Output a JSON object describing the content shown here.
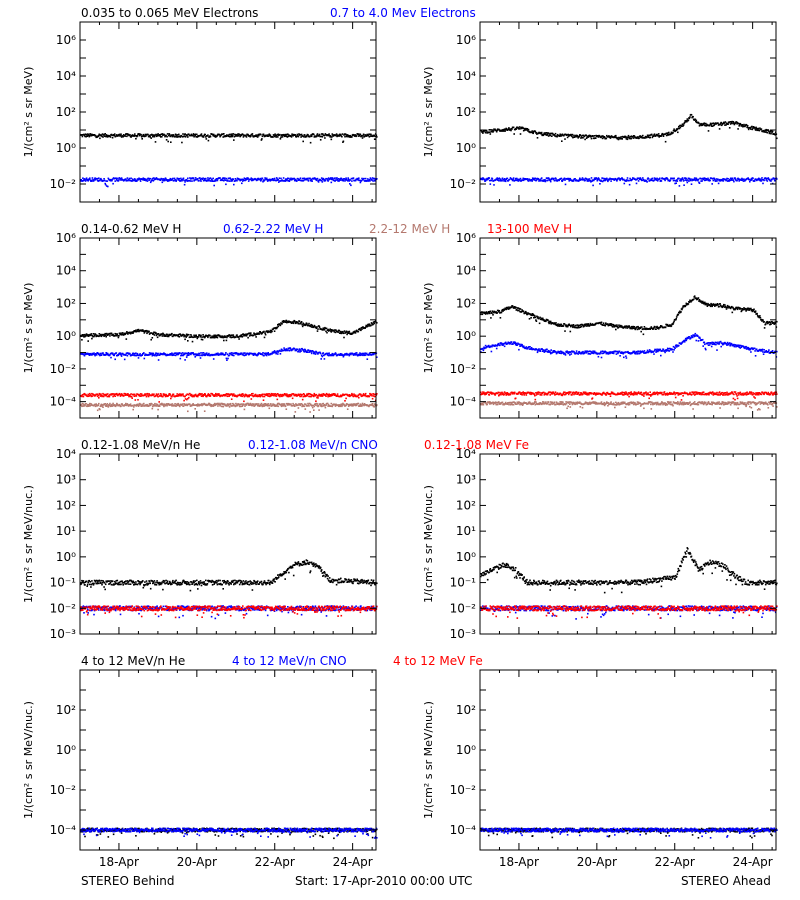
{
  "colors": {
    "black": "#000000",
    "blue": "#0000ff",
    "red": "#ff0000",
    "tan": "#b4786e"
  },
  "footer": {
    "left": "STEREO Behind",
    "center": "Start: 17-Apr-2010 00:00 UTC",
    "right": "STEREO Ahead"
  },
  "x_tick_labels": [
    "18-Apr",
    "20-Apr",
    "22-Apr",
    "24-Apr"
  ],
  "rows": [
    {
      "legend": [
        {
          "text": "0.035 to 0.065 MeV Electrons",
          "color": "#000000"
        },
        {
          "text": "0.7 to 4.0 Mev Electrons",
          "color": "#0000ff"
        }
      ]
    },
    {
      "legend": [
        {
          "text": "0.14-0.62 MeV H",
          "color": "#000000"
        },
        {
          "text": "0.62-2.22 MeV H",
          "color": "#0000ff"
        },
        {
          "text": "2.2-12 MeV H",
          "color": "#b4786e"
        },
        {
          "text": "13-100 MeV H",
          "color": "#ff0000"
        }
      ]
    },
    {
      "legend": [
        {
          "text": "0.12-1.08 MeV/n He",
          "color": "#000000"
        },
        {
          "text": "0.12-1.08 MeV/n CNO",
          "color": "#0000ff"
        },
        {
          "text": "0.12-1.08 MeV Fe",
          "color": "#ff0000"
        }
      ]
    },
    {
      "legend": [
        {
          "text": "4 to 12 MeV/n He",
          "color": "#000000"
        },
        {
          "text": "4 to 12 MeV/n CNO",
          "color": "#0000ff"
        },
        {
          "text": "4 to 12 MeV Fe",
          "color": "#ff0000"
        }
      ]
    }
  ],
  "chart_data": [
    {
      "type": "scatter",
      "panel": "electrons-behind",
      "log_y": true,
      "ylabel": "1/(cm² s sr MeV)",
      "ylim_log10": [
        -3,
        7
      ],
      "xlim_days": [
        0,
        7.6
      ],
      "y_tick_labels": [
        "10⁻²",
        "10⁰",
        "10²",
        "10⁴",
        "10⁶"
      ],
      "series": [
        {
          "name": "0.035 to 0.065 MeV Electrons",
          "color": "#000000",
          "x": [
            0,
            7.6
          ],
          "y_log10": [
            0.7,
            0.7
          ]
        },
        {
          "name": "0.7 to 4.0 Mev Electrons",
          "color": "#0000ff",
          "x": [
            0,
            7.6
          ],
          "y_log10": [
            -1.75,
            -1.75
          ]
        }
      ]
    },
    {
      "type": "scatter",
      "panel": "electrons-ahead",
      "log_y": true,
      "ylabel": "1/(cm² s sr MeV)",
      "ylim_log10": [
        -3,
        7
      ],
      "xlim_days": [
        0,
        7.6
      ],
      "y_tick_labels": [
        "10⁻²",
        "10⁰",
        "10²",
        "10⁴",
        "10⁶"
      ],
      "series": [
        {
          "name": "0.035 to 0.065 MeV Electrons",
          "color": "#000000",
          "x": [
            0,
            0.5,
            1,
            1.5,
            2,
            3,
            4,
            4.8,
            5.2,
            5.4,
            5.6,
            6,
            6.5,
            7,
            7.6
          ],
          "y_log10": [
            0.9,
            1,
            1.1,
            0.8,
            0.7,
            0.6,
            0.6,
            0.75,
            1.3,
            1.8,
            1.3,
            1.3,
            1.4,
            1.1,
            0.8
          ]
        },
        {
          "name": "0.7 to 4.0 Mev Electrons",
          "color": "#0000ff",
          "x": [
            0,
            7.6
          ],
          "y_log10": [
            -1.75,
            -1.75
          ]
        }
      ]
    },
    {
      "type": "scatter",
      "panel": "protons-behind",
      "log_y": true,
      "ylabel": "1/(cm² s sr MeV)",
      "ylim_log10": [
        -5,
        6
      ],
      "xlim_days": [
        0,
        7.6
      ],
      "y_tick_labels": [
        "10⁻⁴",
        "10⁻²",
        "10⁰",
        "10²",
        "10⁴",
        "10⁶"
      ],
      "series": [
        {
          "name": "0.14-0.62 MeV H",
          "color": "#000000",
          "x": [
            0,
            1,
            1.5,
            2,
            3,
            4,
            4.5,
            4.9,
            5.2,
            5.6,
            6,
            6.5,
            7,
            7.6
          ],
          "y_log10": [
            0.05,
            0.1,
            0.35,
            0.1,
            0,
            0,
            0.15,
            0.3,
            0.9,
            0.85,
            0.6,
            0.3,
            0.2,
            0.9
          ]
        },
        {
          "name": "0.62-2.22 MeV H",
          "color": "#0000ff",
          "x": [
            0,
            4.8,
            5.2,
            5.6,
            6.2,
            7.6
          ],
          "y_log10": [
            -1.1,
            -1.1,
            -0.8,
            -0.8,
            -1.1,
            -1.1
          ]
        },
        {
          "name": "2.2-12 MeV H",
          "color": "#b4786e",
          "x": [
            0,
            7.6
          ],
          "y_log10": [
            -4.2,
            -4.2
          ]
        },
        {
          "name": "13-100 MeV H",
          "color": "#ff0000",
          "x": [
            0,
            7.6
          ],
          "y_log10": [
            -3.6,
            -3.6
          ]
        }
      ]
    },
    {
      "type": "scatter",
      "panel": "protons-ahead",
      "log_y": true,
      "ylabel": "1/(cm² s sr MeV)",
      "ylim_log10": [
        -5,
        6
      ],
      "xlim_days": [
        0,
        7.6
      ],
      "y_tick_labels": [
        "10⁻⁴",
        "10⁻²",
        "10⁰",
        "10²",
        "10⁴",
        "10⁶"
      ],
      "series": [
        {
          "name": "0.14-0.62 MeV H",
          "color": "#000000",
          "x": [
            0,
            0.5,
            0.8,
            1.2,
            1.6,
            2,
            2.5,
            3,
            3.5,
            4,
            4.5,
            4.9,
            5.2,
            5.5,
            5.8,
            6.2,
            6.5,
            7,
            7.3,
            7.6
          ],
          "y_log10": [
            1.4,
            1.5,
            1.8,
            1.4,
            1,
            0.7,
            0.6,
            0.8,
            0.6,
            0.5,
            0.5,
            0.7,
            1.8,
            2.4,
            1.9,
            1.9,
            1.7,
            1.6,
            0.8,
            0.8
          ]
        },
        {
          "name": "0.62-2.22 MeV H",
          "color": "#0000ff",
          "x": [
            0,
            0.5,
            0.8,
            1.2,
            2,
            3,
            4,
            4.9,
            5.2,
            5.5,
            5.8,
            6.2,
            7,
            7.6
          ],
          "y_log10": [
            -0.7,
            -0.5,
            -0.4,
            -0.7,
            -1,
            -1,
            -1,
            -0.8,
            -0.3,
            0.1,
            -0.5,
            -0.4,
            -0.8,
            -1
          ]
        },
        {
          "name": "2.2-12 MeV H",
          "color": "#b4786e",
          "x": [
            0,
            7.6
          ],
          "y_log10": [
            -4.1,
            -4.1
          ]
        },
        {
          "name": "13-100 MeV H",
          "color": "#ff0000",
          "x": [
            0,
            7.6
          ],
          "y_log10": [
            -3.5,
            -3.5
          ]
        }
      ]
    },
    {
      "type": "scatter",
      "panel": "heavy-low-behind",
      "log_y": true,
      "ylabel": "1/(cm² s sr MeV/nuc.)",
      "ylim_log10": [
        -3,
        4
      ],
      "xlim_days": [
        0,
        7.6
      ],
      "y_tick_labels": [
        "10⁻³",
        "10⁻²",
        "10⁻¹",
        "10⁰",
        "10¹",
        "10²",
        "10³",
        "10⁴"
      ],
      "series": [
        {
          "name": "0.12-1.08 MeV/n He",
          "color": "#000000",
          "x": [
            0,
            4.9,
            5.2,
            5.5,
            5.8,
            6.1,
            6.4,
            7.6
          ],
          "y_log10": [
            -1,
            -1,
            -0.6,
            -0.3,
            -0.2,
            -0.4,
            -0.9,
            -1
          ]
        },
        {
          "name": "0.12-1.08 MeV/n CNO",
          "color": "#0000ff",
          "x": [
            0,
            7.6
          ],
          "y_log10": [
            -2,
            -2
          ]
        },
        {
          "name": "0.12-1.08 MeV Fe",
          "color": "#ff0000",
          "x": [
            0,
            7.6
          ],
          "y_log10": [
            -2,
            -2
          ]
        }
      ]
    },
    {
      "type": "scatter",
      "panel": "heavy-low-ahead",
      "log_y": true,
      "ylabel": "1/(cm² s sr MeV/nuc.)",
      "ylim_log10": [
        -3,
        4
      ],
      "xlim_days": [
        0,
        7.6
      ],
      "y_tick_labels": [
        "10⁻³",
        "10⁻²",
        "10⁻¹",
        "10⁰",
        "10¹",
        "10²",
        "10³",
        "10⁴"
      ],
      "series": [
        {
          "name": "0.12-1.08 MeV/n He",
          "color": "#000000",
          "x": [
            0,
            0.3,
            0.6,
            0.9,
            1.2,
            2,
            3,
            4,
            5,
            5.3,
            5.6,
            5.9,
            6.2,
            6.5,
            6.8,
            7.6
          ],
          "y_log10": [
            -0.7,
            -0.5,
            -0.3,
            -0.5,
            -1,
            -1,
            -1,
            -1,
            -0.8,
            0.3,
            -0.5,
            -0.2,
            -0.3,
            -0.7,
            -1,
            -1
          ]
        },
        {
          "name": "0.12-1.08 MeV/n CNO",
          "color": "#0000ff",
          "x": [
            0,
            7.6
          ],
          "y_log10": [
            -2,
            -2
          ]
        },
        {
          "name": "0.12-1.08 MeV Fe",
          "color": "#ff0000",
          "x": [
            0,
            7.6
          ],
          "y_log10": [
            -2,
            -2
          ]
        }
      ]
    },
    {
      "type": "scatter",
      "panel": "heavy-high-behind",
      "log_y": true,
      "ylabel": "1/(cm² s sr MeV/nuc.)",
      "ylim_log10": [
        -5,
        4
      ],
      "xlim_days": [
        0,
        7.6
      ],
      "y_tick_labels": [
        "10⁻⁴",
        "10⁻²",
        "10⁰",
        "10²"
      ],
      "series": [
        {
          "name": "4 to 12 MeV/n He",
          "color": "#000000",
          "x": [
            0,
            7.6
          ],
          "y_log10": [
            -4,
            -4
          ]
        },
        {
          "name": "4 to 12 MeV/n CNO",
          "color": "#0000ff",
          "x": [
            0,
            7.6
          ],
          "y_log10": [
            -4,
            -4
          ]
        }
      ]
    },
    {
      "type": "scatter",
      "panel": "heavy-high-ahead",
      "log_y": true,
      "ylabel": "1/(cm² s sr MeV/nuc.)",
      "ylim_log10": [
        -5,
        4
      ],
      "xlim_days": [
        0,
        7.6
      ],
      "y_tick_labels": [
        "10⁻⁴",
        "10⁻²",
        "10⁰",
        "10²"
      ],
      "series": [
        {
          "name": "4 to 12 MeV/n He",
          "color": "#000000",
          "x": [
            0,
            7.6
          ],
          "y_log10": [
            -4,
            -4
          ]
        },
        {
          "name": "4 to 12 MeV/n CNO",
          "color": "#0000ff",
          "x": [
            0,
            7.6
          ],
          "y_log10": [
            -4,
            -4
          ]
        }
      ]
    }
  ]
}
